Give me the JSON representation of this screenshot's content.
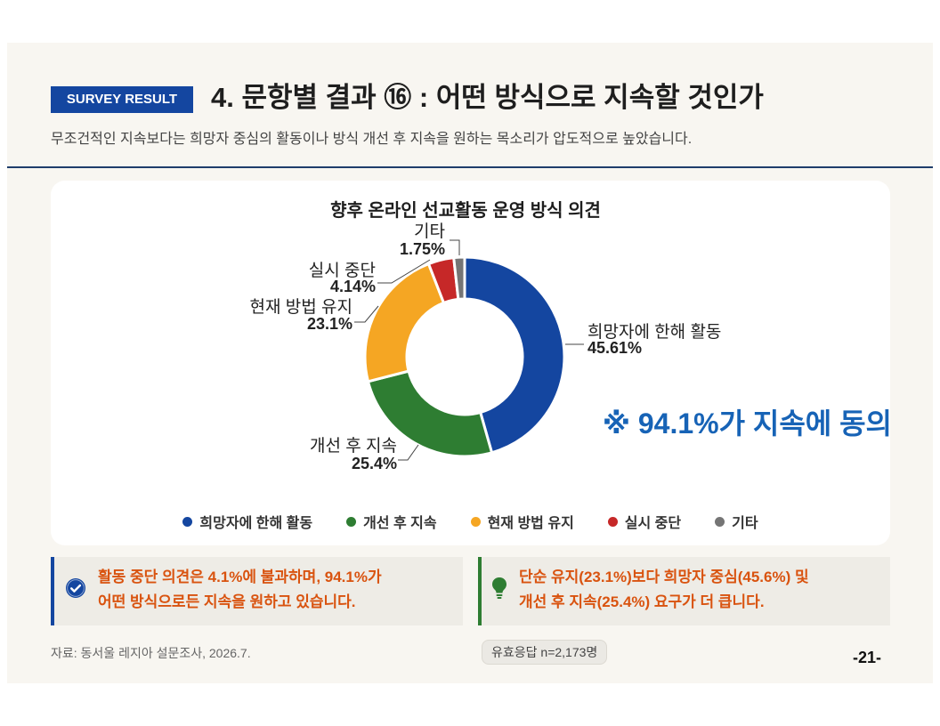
{
  "header": {
    "badge": "SURVEY RESULT",
    "title": "4. 문항별 결과 ⑯ : 어떤 방식으로 지속할 것인가",
    "subtitle": "무조건적인 지속보다는 희망자 중심의 활동이나 방식 개선 후 지속을 원하는 목소리가 압도적으로 높았습니다."
  },
  "chart_data": {
    "type": "pie",
    "donut": true,
    "title": "향후 온라인 선교활동 운영 방식 의견",
    "categories": [
      "희망자에 한해 활동",
      "개선 후 지속",
      "현재 방법 유지",
      "실시 중단",
      "기타"
    ],
    "values": [
      45.61,
      25.4,
      23.1,
      4.14,
      1.75
    ],
    "value_labels": [
      "45.61%",
      "25.4%",
      "23.1%",
      "4.14%",
      "1.75%"
    ],
    "colors": [
      "#1446a0",
      "#2e7d32",
      "#f5a623",
      "#c62828",
      "#757575"
    ],
    "legend": "bottom",
    "annotations": [
      "※ 94.1%가 지속에 동의"
    ]
  },
  "callouts": [
    {
      "icon": "check-circle-icon",
      "color": "#1446a0",
      "lines": [
        "활동 중단 의견은 4.1%에 불과하며, 94.1%가",
        "어떤 방식으로든 지속을 원하고 있습니다."
      ]
    },
    {
      "icon": "lightbulb-icon",
      "color": "#2e7d32",
      "lines": [
        "단순 유지(23.1%)보다 희망자 중심(45.6%) 및",
        "개선 후 지속(25.4%) 요구가 더 큽니다."
      ]
    }
  ],
  "footer": {
    "source": "자료: 동서울 레지아 설문조사, 2026.7.",
    "sample": "유효응답 n=2,173명",
    "page_number": "-21-"
  },
  "colors": {
    "accent": "#1446a0",
    "highlight_text": "#d9530f",
    "annotation_text": "#1763b6",
    "divider": "#1f3d6b"
  }
}
